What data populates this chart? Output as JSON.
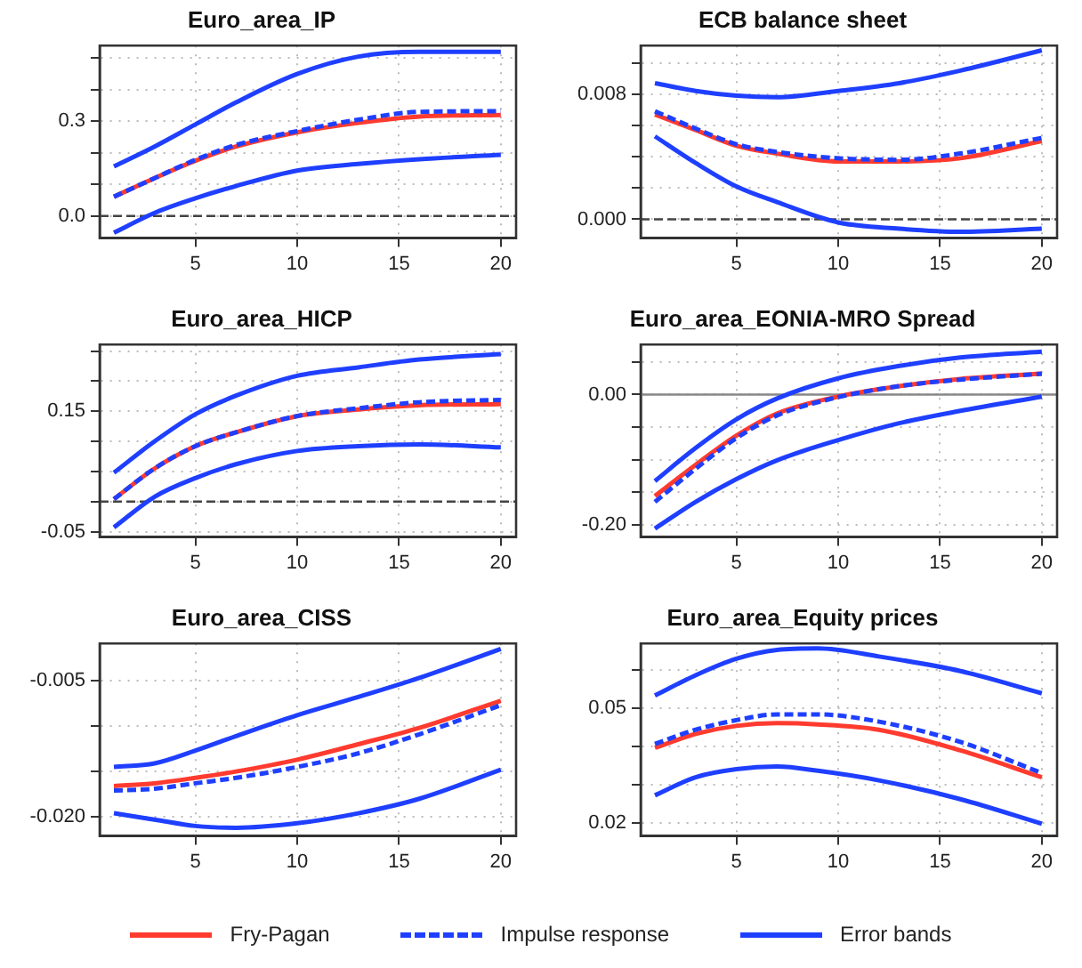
{
  "chart_data": [
    {
      "type": "line",
      "title": "Euro_area_IP",
      "x": [
        1,
        3,
        5,
        7,
        10,
        13,
        16,
        20
      ],
      "xlim": [
        0.3,
        20.75
      ],
      "xticks": [
        5,
        10,
        15,
        20
      ],
      "ylim": [
        -0.07,
        0.54
      ],
      "yticks": [
        {
          "value": 0,
          "label": "0.0"
        },
        {
          "value": 0.1,
          "label": null
        },
        {
          "value": 0.2,
          "label": null
        },
        {
          "value": 0.3,
          "label": "0.3"
        },
        {
          "value": 0.4,
          "label": null
        },
        {
          "value": 0.5,
          "label": null
        }
      ],
      "grid": true,
      "legend": "bottom",
      "ref_lines": [
        {
          "axis": "y",
          "value": 0,
          "color": "#444444",
          "line_style": "dashed"
        }
      ],
      "series": [
        {
          "name": "Fry-Pagan",
          "color": "#ff3b2f",
          "line_style": "solid",
          "values": [
            0.061,
            0.12,
            0.175,
            0.22,
            0.265,
            0.295,
            0.315,
            0.32
          ]
        },
        {
          "name": "Impulse response",
          "color": "#1f3fff",
          "line_style": "dashed",
          "values": [
            0.061,
            0.12,
            0.178,
            0.225,
            0.269,
            0.305,
            0.33,
            0.332
          ]
        },
        {
          "name": "Error bands",
          "color": "#1f3fff",
          "line_style": "solid",
          "values": [
            0.157,
            0.22,
            0.29,
            0.36,
            0.45,
            0.505,
            0.52,
            0.52
          ]
        },
        {
          "color": "#1f3fff",
          "line_style": "solid",
          "values": [
            -0.053,
            0.01,
            0.056,
            0.095,
            0.144,
            0.165,
            0.18,
            0.194
          ]
        }
      ]
    },
    {
      "type": "line",
      "title": "ECB balance sheet",
      "x": [
        1,
        3,
        5,
        7,
        10,
        13,
        16,
        20
      ],
      "xlim": [
        0.3,
        20.75
      ],
      "xticks": [
        5,
        10,
        15,
        20
      ],
      "ylim": [
        -0.0012,
        0.0111
      ],
      "yticks": [
        {
          "value": 0,
          "label": "0.000"
        },
        {
          "value": 0.002,
          "label": null
        },
        {
          "value": 0.004,
          "label": null
        },
        {
          "value": 0.006,
          "label": null
        },
        {
          "value": 0.008,
          "label": "0.008"
        },
        {
          "value": 0.01,
          "label": null
        }
      ],
      "grid": true,
      "ref_lines": [
        {
          "axis": "y",
          "value": 0,
          "color": "#444444",
          "line_style": "dashed"
        }
      ],
      "series": [
        {
          "color": "#ff3b2f",
          "line_style": "solid",
          "values": [
            0.0067,
            0.0057,
            0.0047,
            0.0042,
            0.0037,
            0.0037,
            0.0039,
            0.005
          ]
        },
        {
          "color": "#1f3fff",
          "line_style": "dashed",
          "values": [
            0.0069,
            0.0058,
            0.0048,
            0.0043,
            0.0039,
            0.0038,
            0.0042,
            0.0052
          ]
        },
        {
          "color": "#1f3fff",
          "line_style": "solid",
          "values": [
            0.0087,
            0.0082,
            0.0079,
            0.0078,
            0.0082,
            0.0087,
            0.0095,
            0.0108
          ]
        },
        {
          "color": "#1f3fff",
          "line_style": "solid",
          "values": [
            0.0053,
            0.0036,
            0.0021,
            0.0011,
            -0.0002,
            -0.0006,
            -0.0008,
            -0.0006
          ]
        }
      ]
    },
    {
      "type": "line",
      "title": "Euro_area_HICP",
      "x": [
        1,
        3,
        5,
        7,
        10,
        13,
        16,
        20
      ],
      "xlim": [
        0.3,
        20.75
      ],
      "xticks": [
        5,
        10,
        15,
        20
      ],
      "ylim": [
        -0.059,
        0.261
      ],
      "yticks": [
        {
          "value": -0.05,
          "label": "-0.05"
        },
        {
          "value": 0,
          "label": null
        },
        {
          "value": 0.05,
          "label": null
        },
        {
          "value": 0.1,
          "label": null
        },
        {
          "value": 0.15,
          "label": "0.15"
        },
        {
          "value": 0.2,
          "label": null
        },
        {
          "value": 0.25,
          "label": null
        }
      ],
      "grid": true,
      "ref_lines": [
        {
          "axis": "y",
          "value": 0,
          "color": "#444444",
          "line_style": "dashed"
        }
      ],
      "series": [
        {
          "color": "#ff3b2f",
          "line_style": "solid",
          "values": [
            0.004,
            0.055,
            0.092,
            0.115,
            0.142,
            0.153,
            0.16,
            0.162
          ]
        },
        {
          "color": "#1f3fff",
          "line_style": "dashed",
          "values": [
            0.004,
            0.055,
            0.092,
            0.115,
            0.142,
            0.155,
            0.165,
            0.169
          ]
        },
        {
          "color": "#1f3fff",
          "line_style": "solid",
          "values": [
            0.048,
            0.1,
            0.145,
            0.176,
            0.209,
            0.223,
            0.236,
            0.245
          ]
        },
        {
          "color": "#1f3fff",
          "line_style": "solid",
          "values": [
            -0.043,
            0.008,
            0.039,
            0.062,
            0.084,
            0.092,
            0.095,
            0.09
          ]
        }
      ]
    },
    {
      "type": "line",
      "title": "Euro_area_EONIA-MRO Spread",
      "x": [
        1,
        3,
        5,
        7,
        10,
        13,
        16,
        20
      ],
      "xlim": [
        0.3,
        20.75
      ],
      "xticks": [
        5,
        10,
        15,
        20
      ],
      "ylim": [
        -0.219,
        0.077
      ],
      "yticks": [
        {
          "value": -0.2,
          "label": "-0.20"
        },
        {
          "value": -0.15,
          "label": null
        },
        {
          "value": -0.1,
          "label": null
        },
        {
          "value": -0.05,
          "label": null
        },
        {
          "value": 0,
          "label": "0.00"
        },
        {
          "value": 0.05,
          "label": null
        }
      ],
      "grid": true,
      "ref_lines": [
        {
          "axis": "y",
          "value": 0,
          "color": "#888888",
          "line_style": "solid"
        }
      ],
      "series": [
        {
          "color": "#ff3b2f",
          "line_style": "solid",
          "values": [
            -0.156,
            -0.108,
            -0.063,
            -0.029,
            -0.003,
            0.013,
            0.024,
            0.032
          ]
        },
        {
          "color": "#1f3fff",
          "line_style": "dashed",
          "values": [
            -0.165,
            -0.114,
            -0.067,
            -0.032,
            -0.004,
            0.013,
            0.023,
            0.032
          ]
        },
        {
          "color": "#1f3fff",
          "line_style": "solid",
          "values": [
            -0.133,
            -0.082,
            -0.038,
            -0.006,
            0.025,
            0.044,
            0.057,
            0.066
          ]
        },
        {
          "color": "#1f3fff",
          "line_style": "solid",
          "values": [
            -0.206,
            -0.165,
            -0.13,
            -0.101,
            -0.07,
            -0.044,
            -0.025,
            -0.003
          ]
        }
      ]
    },
    {
      "type": "line",
      "title": "Euro_area_CISS",
      "x": [
        1,
        3,
        5,
        7,
        10,
        13,
        16,
        20
      ],
      "xlim": [
        0.3,
        20.75
      ],
      "xticks": [
        5,
        10,
        15,
        20
      ],
      "ylim": [
        -0.0221,
        -0.0009
      ],
      "yticks": [
        {
          "value": -0.02,
          "label": "-0.020"
        },
        {
          "value": -0.015,
          "label": null
        },
        {
          "value": -0.01,
          "label": null
        },
        {
          "value": -0.005,
          "label": "-0.005"
        }
      ],
      "grid": true,
      "series": [
        {
          "color": "#ff3b2f",
          "line_style": "solid",
          "values": [
            -0.0166,
            -0.0163,
            -0.0157,
            -0.015,
            -0.0137,
            -0.012,
            -0.0102,
            -0.0072
          ]
        },
        {
          "color": "#1f3fff",
          "line_style": "dashed",
          "values": [
            -0.0171,
            -0.0169,
            -0.0163,
            -0.0157,
            -0.0145,
            -0.013,
            -0.0109,
            -0.0077
          ]
        },
        {
          "color": "#1f3fff",
          "line_style": "solid",
          "values": [
            -0.0145,
            -0.0141,
            -0.0127,
            -0.0111,
            -0.0088,
            -0.0068,
            -0.0047,
            -0.0015
          ]
        },
        {
          "color": "#1f3fff",
          "line_style": "solid",
          "values": [
            -0.0196,
            -0.0203,
            -0.021,
            -0.0212,
            -0.0207,
            -0.0196,
            -0.018,
            -0.0148
          ]
        }
      ]
    },
    {
      "type": "line",
      "title": "Euro_area_Equity prices",
      "x": [
        1,
        3,
        5,
        7,
        9,
        12,
        16,
        20
      ],
      "xlim": [
        0.3,
        20.75
      ],
      "xticks": [
        5,
        10,
        15,
        20
      ],
      "ylim": [
        0.0166,
        0.0668
      ],
      "yticks": [
        {
          "value": 0.02,
          "label": "0.02"
        },
        {
          "value": 0.03,
          "label": null
        },
        {
          "value": 0.04,
          "label": null
        },
        {
          "value": 0.05,
          "label": "0.05"
        },
        {
          "value": 0.06,
          "label": null
        }
      ],
      "grid": true,
      "series": [
        {
          "color": "#ff3b2f",
          "line_style": "solid",
          "values": [
            0.0396,
            0.0432,
            0.0453,
            0.046,
            0.0457,
            0.0443,
            0.0389,
            0.0319
          ]
        },
        {
          "color": "#1f3fff",
          "line_style": "dashed",
          "values": [
            0.0406,
            0.0443,
            0.0468,
            0.0483,
            0.0483,
            0.0464,
            0.0411,
            0.033
          ]
        },
        {
          "color": "#1f3fff",
          "line_style": "solid",
          "values": [
            0.0532,
            0.0585,
            0.0628,
            0.0651,
            0.0655,
            0.0634,
            0.0596,
            0.0538
          ]
        },
        {
          "color": "#1f3fff",
          "line_style": "solid",
          "values": [
            0.0272,
            0.0319,
            0.034,
            0.0347,
            0.0336,
            0.0311,
            0.0262,
            0.0198
          ]
        }
      ]
    }
  ]
}
